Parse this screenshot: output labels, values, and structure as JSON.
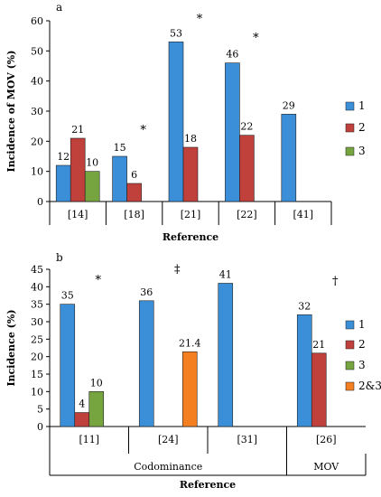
{
  "chart_data": [
    {
      "type": "bar",
      "panel_label": "a",
      "ylabel": "Incidence of MOV (%)",
      "xlabel": "Reference",
      "ylim": [
        0,
        60
      ],
      "yticks": [
        "0",
        "10",
        "20",
        "30",
        "40",
        "50",
        "60"
      ],
      "categories": [
        "[14]",
        "[18]",
        "[21]",
        "[22]",
        "[41]"
      ],
      "series": [
        {
          "name": "1",
          "color": "#3b8fd9",
          "values": [
            12,
            15,
            53,
            46,
            29
          ]
        },
        {
          "name": "2",
          "color": "#c0403b",
          "values": [
            21,
            6,
            18,
            22,
            null
          ]
        },
        {
          "name": "3",
          "color": "#76a540",
          "values": [
            10,
            null,
            null,
            null,
            null
          ]
        }
      ],
      "data_labels": [
        [
          "12",
          "15",
          "53",
          "46",
          "29"
        ],
        [
          "21",
          "6",
          "18",
          "22",
          ""
        ],
        [
          "10",
          "",
          "",
          "",
          ""
        ]
      ],
      "markers": [
        {
          "category": 1,
          "text": "*"
        },
        {
          "category": 2,
          "text": "*"
        },
        {
          "category": 3,
          "text": "*"
        }
      ],
      "legend_position": "right"
    },
    {
      "type": "bar",
      "panel_label": "b",
      "ylabel": "Incidence (%)",
      "xlabel": "Reference",
      "ylim": [
        0,
        45
      ],
      "yticks": [
        "0",
        "5",
        "10",
        "15",
        "20",
        "25",
        "30",
        "35",
        "40",
        "45"
      ],
      "categories": [
        "[11]",
        "[24]",
        "[31]",
        "[26]"
      ],
      "groups": [
        {
          "label": "Codominance",
          "categories": [
            0,
            1,
            2
          ]
        },
        {
          "label": "MOV",
          "categories": [
            3
          ]
        }
      ],
      "series": [
        {
          "name": "1",
          "color": "#3b8fd9",
          "values": [
            35,
            36,
            41,
            32
          ]
        },
        {
          "name": "2",
          "color": "#c0403b",
          "values": [
            4,
            null,
            null,
            21
          ]
        },
        {
          "name": "3",
          "color": "#76a540",
          "values": [
            10,
            null,
            null,
            null
          ]
        },
        {
          "name": "2&3",
          "color": "#f47f20",
          "values": [
            null,
            21.4,
            null,
            null
          ]
        }
      ],
      "data_labels": [
        [
          "35",
          "36",
          "41",
          "32"
        ],
        [
          "4",
          "",
          "",
          "21"
        ],
        [
          "10",
          "",
          "",
          ""
        ],
        [
          "",
          "21.4",
          "",
          ""
        ]
      ],
      "markers": [
        {
          "category": 0,
          "text": "*"
        },
        {
          "category": 1,
          "text": "‡"
        },
        {
          "category": 3,
          "text": "†"
        }
      ],
      "legend_position": "right"
    }
  ]
}
